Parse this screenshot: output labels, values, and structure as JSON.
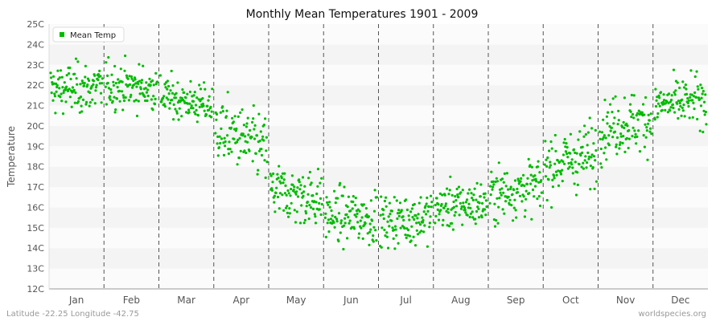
{
  "chart_data": {
    "type": "scatter",
    "title": "Monthly Mean Temperatures 1901 - 2009",
    "ylabel": "Temperature",
    "xlabel": "",
    "categories": [
      "Jan",
      "Feb",
      "Mar",
      "Apr",
      "May",
      "Jun",
      "Jul",
      "Aug",
      "Sep",
      "Oct",
      "Nov",
      "Dec"
    ],
    "yticks": [
      "12C",
      "13C",
      "14C",
      "15C",
      "16C",
      "17C",
      "18C",
      "19C",
      "20C",
      "21C",
      "22C",
      "23C",
      "24C",
      "25C"
    ],
    "ylim": [
      12,
      25
    ],
    "grid": "alternating horizontal bands, dashed vertical month separators",
    "legend": {
      "label": "Mean Temp",
      "placement": "top-left"
    },
    "series": [
      {
        "name": "Mean Temp",
        "color": "#00bb00",
        "years": [
          1901,
          2009
        ],
        "monthly_summary": [
          {
            "month": "Jan",
            "mean": 21.8,
            "min": 20.0,
            "max": 24.3
          },
          {
            "month": "Feb",
            "mean": 22.0,
            "min": 20.3,
            "max": 24.2
          },
          {
            "month": "Mar",
            "mean": 21.5,
            "min": 19.8,
            "max": 23.2
          },
          {
            "month": "Apr",
            "mean": 19.9,
            "min": 17.0,
            "max": 22.6
          },
          {
            "month": "May",
            "mean": 16.8,
            "min": 14.8,
            "max": 19.8
          },
          {
            "month": "Jun",
            "mean": 15.6,
            "min": 13.1,
            "max": 17.6
          },
          {
            "month": "Jul",
            "mean": 15.3,
            "min": 12.9,
            "max": 17.3
          },
          {
            "month": "Aug",
            "mean": 16.0,
            "min": 14.0,
            "max": 18.0
          },
          {
            "month": "Sep",
            "mean": 16.6,
            "min": 14.6,
            "max": 19.2
          },
          {
            "month": "Oct",
            "mean": 18.0,
            "min": 16.0,
            "max": 21.5
          },
          {
            "month": "Nov",
            "mean": 19.9,
            "min": 17.3,
            "max": 22.4
          },
          {
            "month": "Dec",
            "mean": 21.0,
            "min": 19.1,
            "max": 23.2
          }
        ]
      }
    ]
  },
  "footer": {
    "left": "Latitude -22.25 Longitude -42.75",
    "right": "worldspecies.org"
  },
  "colors": {
    "band_light": "#f4f4f4",
    "band_white": "#fbfbfb",
    "axis": "#999999",
    "separator": "#555555"
  }
}
